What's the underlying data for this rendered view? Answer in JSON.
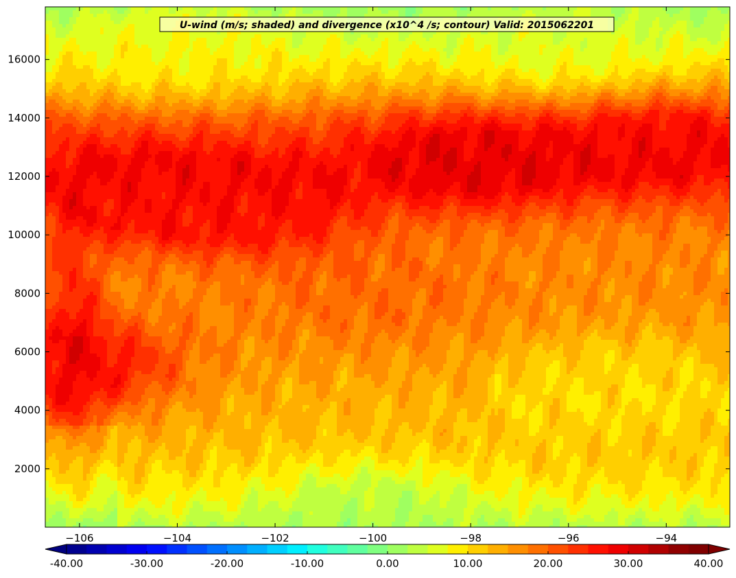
{
  "chart_data": {
    "type": "heatmap",
    "title": "U-wind (m/s; shaded) and divergence (x10^4 /s; contour) Valid: 2015062201",
    "xlabel": "",
    "ylabel": "",
    "xlim": [
      -106.7,
      -92.7
    ],
    "ylim": [
      0,
      17800
    ],
    "x_ticks": [
      -106,
      -104,
      -102,
      -100,
      -98,
      -96,
      -94
    ],
    "x_tick_labels": [
      "−106",
      "−104",
      "−102",
      "−100",
      "−98",
      "−96",
      "−94"
    ],
    "y_ticks": [
      2000,
      4000,
      6000,
      8000,
      10000,
      12000,
      14000,
      16000
    ],
    "y_tick_labels": [
      "2000",
      "4000",
      "6000",
      "8000",
      "10000",
      "12000",
      "14000",
      "16000"
    ],
    "grid": false,
    "field_description_points": [
      {
        "x": -98,
        "y": 12500,
        "u": 32
      },
      {
        "x": -94,
        "y": 13000,
        "u": 30
      },
      {
        "x": -105,
        "y": 11500,
        "u": 30
      },
      {
        "x": -102.5,
        "y": 11000,
        "u": 30
      },
      {
        "x": -106.3,
        "y": 5500,
        "u": 30
      },
      {
        "x": -100,
        "y": 8000,
        "u": 20
      },
      {
        "x": -95,
        "y": 5000,
        "u": 10
      },
      {
        "x": -100,
        "y": 500,
        "u": 2
      },
      {
        "x": -104,
        "y": 16500,
        "u": 8
      },
      {
        "x": -96,
        "y": 16500,
        "u": 6
      }
    ],
    "colorbar": {
      "min": -40,
      "max": 40,
      "step": 2.5,
      "extend": "both",
      "ticks": [
        "-40.00",
        "-30.00",
        "-20.00",
        "-10.00",
        "0.00",
        "10.00",
        "20.00",
        "30.00",
        "40.00"
      ],
      "colors": [
        "#00008f",
        "#0000b0",
        "#0000d0",
        "#0000f0",
        "#0010ff",
        "#0030ff",
        "#0050ff",
        "#0070ff",
        "#008fff",
        "#00afff",
        "#00cfff",
        "#00efff",
        "#20ffdf",
        "#40ffbf",
        "#60ff9f",
        "#80ff80",
        "#9fff60",
        "#bfff40",
        "#dfff20",
        "#ffef00",
        "#ffcf00",
        "#ffaf00",
        "#ff8f00",
        "#ff7000",
        "#ff5000",
        "#ff3000",
        "#ff1000",
        "#ef0000",
        "#d00000",
        "#b00000",
        "#900000",
        "#800000"
      ],
      "under_color": "#00007f",
      "over_color": "#7f0000"
    }
  }
}
